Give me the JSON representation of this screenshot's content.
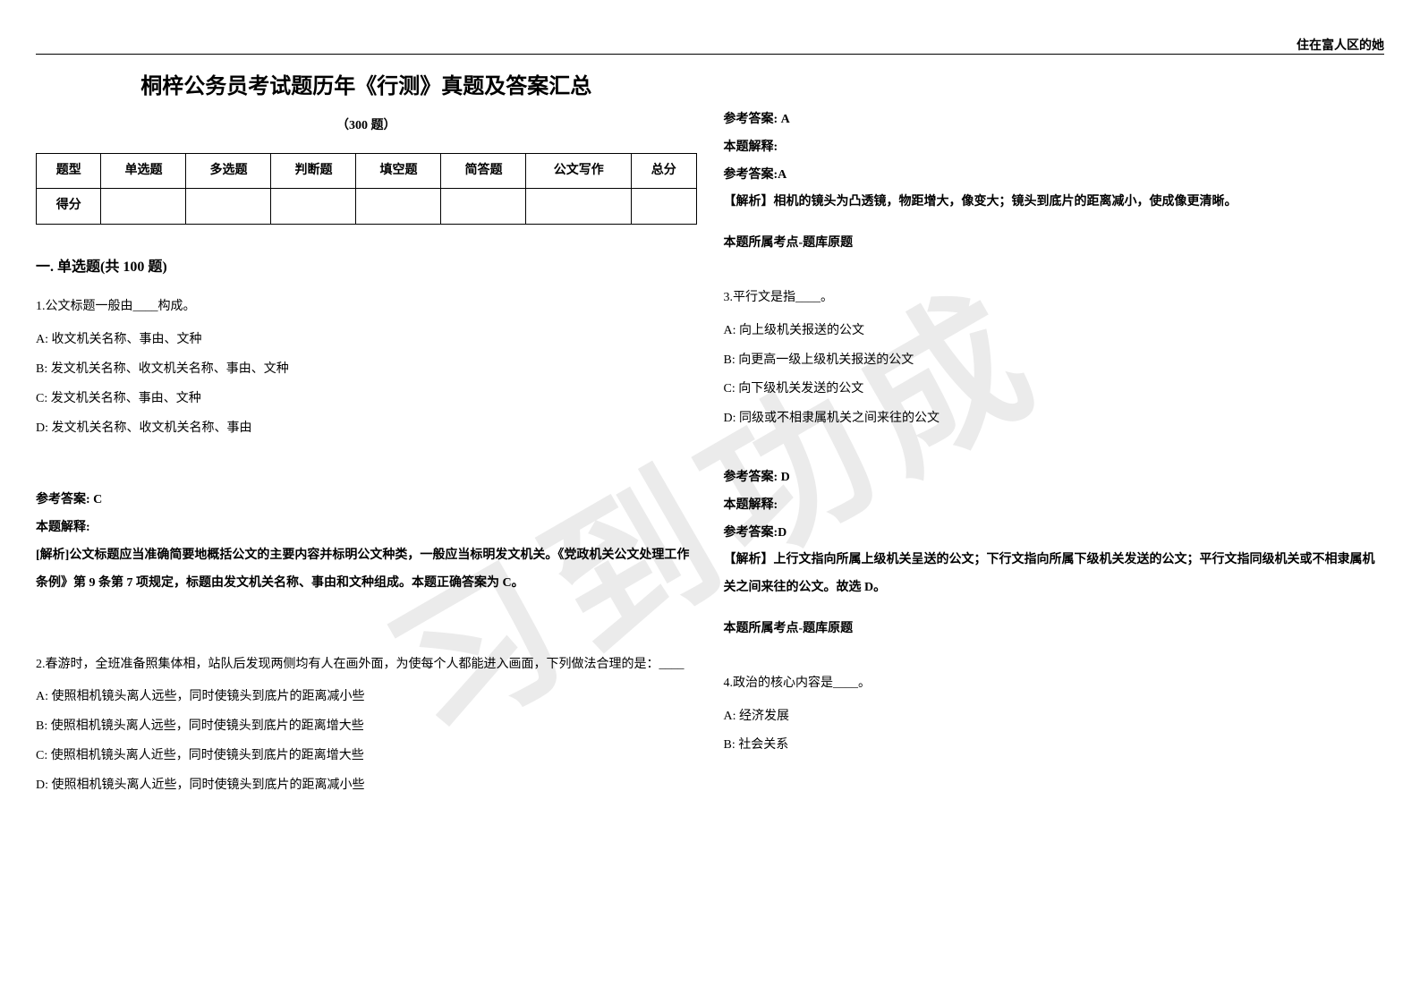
{
  "header": {
    "right_text": "住在富人区的她"
  },
  "watermark": "习到功成",
  "title": "桐梓公务员考试题历年《行测》真题及答案汇总",
  "subtitle": "（300 题）",
  "score_table": {
    "headers": [
      "题型",
      "单选题",
      "多选题",
      "判断题",
      "填空题",
      "简答题",
      "公文写作",
      "总分"
    ],
    "row_label": "得分"
  },
  "section_title": "一. 单选题(共 100 题)",
  "left_column": {
    "q1": {
      "text": "1.公文标题一般由____构成。",
      "opt_a": "A: 收文机关名称、事由、文种",
      "opt_b": "B: 发文机关名称、收文机关名称、事由、文种",
      "opt_c": "C: 发文机关名称、事由、文种",
      "opt_d": "D: 发文机关名称、收文机关名称、事由",
      "answer": "参考答案: C",
      "explain_label": "本题解释:",
      "explain": "[解析]公文标题应当准确简要地概括公文的主要内容并标明公文种类，一般应当标明发文机关。《党政机关公文处理工作条例》第 9 条第 7 项规定，标题由发文机关名称、事由和文种组成。本题正确答案为 C。"
    },
    "q2": {
      "text": "2.春游时，全班准备照集体相，站队后发现两侧均有人在画外面，为使每个人都能进入画面，下列做法合理的是：____",
      "opt_a": "A: 使照相机镜头离人远些，同时使镜头到底片的距离减小些",
      "opt_b": "B: 使照相机镜头离人远些，同时使镜头到底片的距离增大些",
      "opt_c": "C: 使照相机镜头离人近些，同时使镜头到底片的距离增大些",
      "opt_d": "D: 使照相机镜头离人近些，同时使镜头到底片的距离减小些"
    }
  },
  "right_column": {
    "q2_cont": {
      "answer": "参考答案: A",
      "explain_label": "本题解释:",
      "answer2": "参考答案:A",
      "explain": "【解析】相机的镜头为凸透镜，物距增大，像变大；镜头到底片的距离减小，使成像更清晰。",
      "topic": "本题所属考点-题库原题"
    },
    "q3": {
      "text": "3.平行文是指____。",
      "opt_a": "A: 向上级机关报送的公文",
      "opt_b": "B: 向更高一级上级机关报送的公文",
      "opt_c": "C: 向下级机关发送的公文",
      "opt_d": "D: 同级或不相隶属机关之间来往的公文",
      "answer": "参考答案: D",
      "explain_label": "本题解释:",
      "answer2": "参考答案:D",
      "explain": "【解析】上行文指向所属上级机关呈送的公文；下行文指向所属下级机关发送的公文；平行文指同级机关或不相隶属机关之间来往的公文。故选 D。",
      "topic": "本题所属考点-题库原题"
    },
    "q4": {
      "text": "4.政治的核心内容是____。",
      "opt_a": "A: 经济发展",
      "opt_b": "B: 社会关系"
    }
  }
}
